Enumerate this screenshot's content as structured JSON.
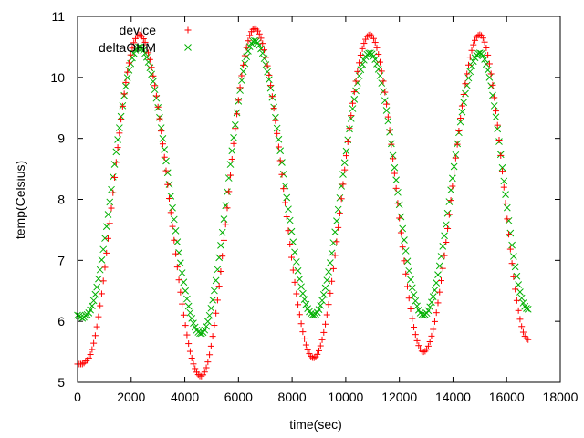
{
  "chart_data": {
    "type": "scatter",
    "title": "",
    "xlabel": "time(sec)",
    "ylabel": "temp(Celsius)",
    "xlim": [
      0,
      18000
    ],
    "ylim": [
      5,
      11
    ],
    "x_ticks": [
      0,
      2000,
      4000,
      6000,
      8000,
      10000,
      12000,
      14000,
      16000,
      18000
    ],
    "y_ticks": [
      5,
      6,
      7,
      8,
      9,
      10,
      11
    ],
    "grid": false,
    "legend_position": "top-left",
    "sample_interval": 60,
    "series": [
      {
        "name": "device",
        "marker": "plus",
        "color": "#ff0000",
        "keyframes": [
          [
            0,
            5.3
          ],
          [
            200,
            5.3
          ],
          [
            300,
            5.35
          ],
          [
            2300,
            10.7
          ],
          [
            4600,
            5.1
          ],
          [
            6600,
            10.8
          ],
          [
            8800,
            5.4
          ],
          [
            10900,
            10.7
          ],
          [
            12900,
            5.5
          ],
          [
            15000,
            10.7
          ],
          [
            16800,
            5.7
          ]
        ]
      },
      {
        "name": "deltaOHM",
        "marker": "cross",
        "color": "#00b000",
        "keyframes": [
          [
            0,
            6.1
          ],
          [
            200,
            6.05
          ],
          [
            300,
            6.1
          ],
          [
            2300,
            10.5
          ],
          [
            4600,
            5.8
          ],
          [
            6600,
            10.6
          ],
          [
            8800,
            6.1
          ],
          [
            10900,
            10.4
          ],
          [
            12900,
            6.1
          ],
          [
            15000,
            10.4
          ],
          [
            16800,
            6.2
          ]
        ]
      }
    ]
  }
}
